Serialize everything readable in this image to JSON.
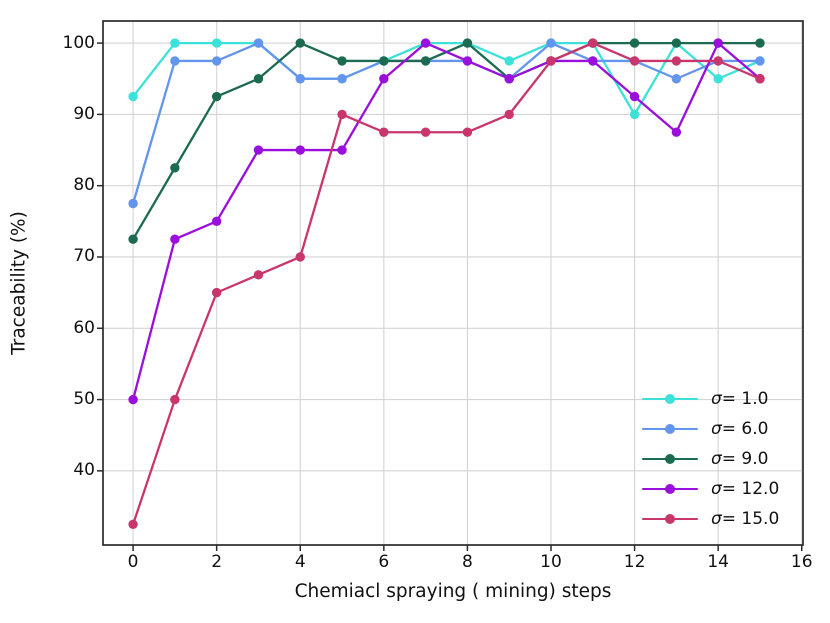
{
  "figure": {
    "title": "",
    "background": "#ffffff"
  },
  "chart_data": {
    "type": "line",
    "title": "",
    "xlabel": "Chemiacl spraying ( mining)  steps",
    "ylabel": "Traceability (%)",
    "x": [
      0,
      1,
      2,
      3,
      4,
      5,
      6,
      7,
      8,
      9,
      10,
      11,
      12,
      13,
      14,
      15
    ],
    "x_ticks": [
      0,
      2,
      4,
      6,
      8,
      10,
      12,
      14,
      16
    ],
    "y_ticks": [
      40,
      50,
      60,
      70,
      80,
      90,
      100
    ],
    "xlim": [
      -0.72,
      16.03
    ],
    "ylim": [
      29.6,
      103.1
    ],
    "grid": true,
    "legend_position": "lower right",
    "series": [
      {
        "name": "σ= 1.0",
        "color": "#3ce2d9",
        "values": [
          92.5,
          100,
          100,
          100,
          95,
          95,
          97.5,
          100,
          100,
          97.5,
          100,
          100,
          90,
          100,
          95,
          97.5
        ]
      },
      {
        "name": "σ= 6.0",
        "color": "#6495ed",
        "values": [
          77.5,
          97.5,
          97.5,
          100,
          95,
          95,
          97.5,
          97.5,
          97.5,
          95,
          100,
          97.5,
          97.5,
          95,
          97.5,
          97.5
        ]
      },
      {
        "name": "σ= 9.0",
        "color": "#1c6b50",
        "values": [
          72.5,
          82.5,
          92.5,
          95,
          100,
          97.5,
          97.5,
          97.5,
          100,
          95,
          97.5,
          100,
          100,
          100,
          100,
          100
        ]
      },
      {
        "name": "σ= 12.0",
        "color": "#9a0fdc",
        "values": [
          50,
          72.5,
          75,
          85,
          85,
          85,
          95,
          100,
          97.5,
          95,
          97.5,
          97.5,
          92.5,
          87.5,
          100,
          95
        ]
      },
      {
        "name": "σ= 15.0",
        "color": "#c9366b",
        "values": [
          32.5,
          50,
          65,
          67.5,
          70,
          90,
          87.5,
          87.5,
          87.5,
          90,
          97.5,
          100,
          97.5,
          97.5,
          97.5,
          95
        ]
      }
    ],
    "style": {
      "grid_color": "#d4d4d4",
      "spine_color": "#2b2b2b",
      "tick_color": "#2b2b2b",
      "text_color": "#111111",
      "line_width": 2.3,
      "marker_radius": 4.7
    }
  }
}
